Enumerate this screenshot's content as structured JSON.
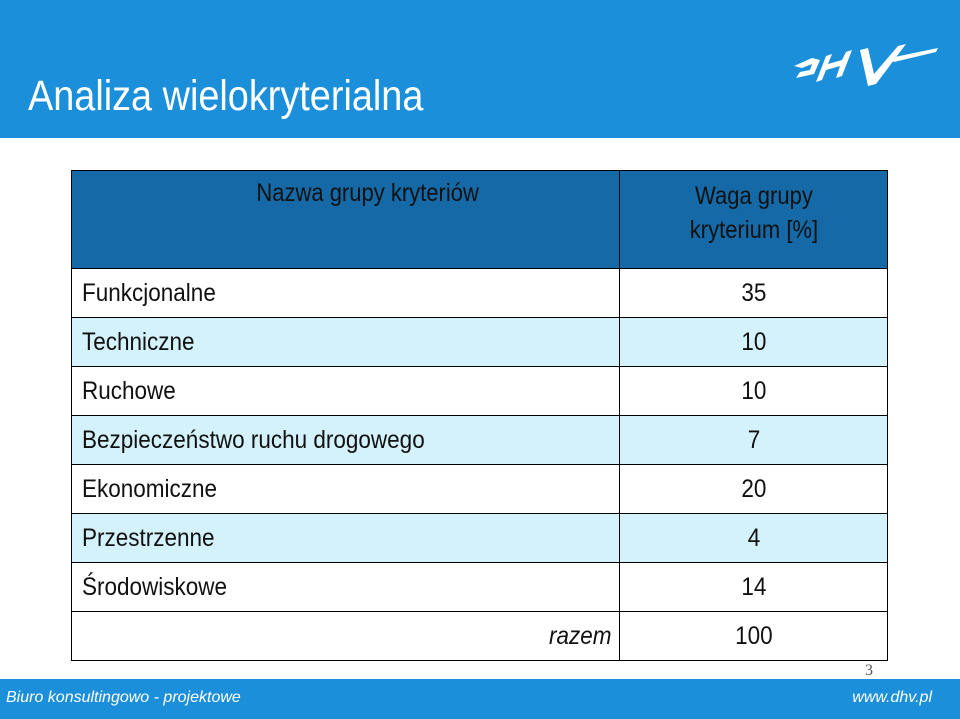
{
  "slide": {
    "title": "Analiza wielokryterialna",
    "logo_text": "DHV",
    "slide_number": "3"
  },
  "table": {
    "headers": {
      "name": "Nazwa grupy kryteriów",
      "weight_line1": "Waga grupy",
      "weight_line2": "kryterium [%]"
    },
    "rows": [
      {
        "name": "Funkcjonalne",
        "weight": "35"
      },
      {
        "name": "Techniczne",
        "weight": "10"
      },
      {
        "name": "Ruchowe",
        "weight": "10"
      },
      {
        "name": "Bezpieczeństwo ruchu drogowego",
        "weight": "7"
      },
      {
        "name": "Ekonomiczne",
        "weight": "20"
      },
      {
        "name": "Przestrzenne",
        "weight": "4"
      },
      {
        "name": "Środowiskowe",
        "weight": "14"
      }
    ],
    "total": {
      "label": "razem",
      "value": "100"
    }
  },
  "footer": {
    "left": "Biuro konsultingowo - projektowe",
    "right": "www.dhv.pl"
  },
  "colors": {
    "brand_blue": "#1c8fdb",
    "header_blue": "#1469a6",
    "row_light": "#d4f2fb"
  }
}
